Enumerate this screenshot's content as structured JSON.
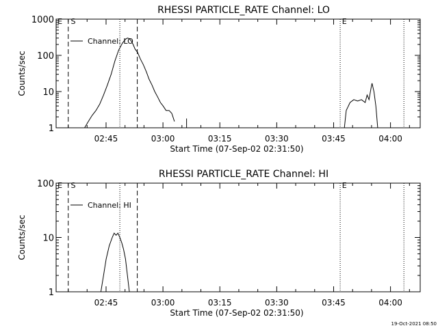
{
  "footer_timestamp": "19-Oct-2021 08:50",
  "chart_data": [
    {
      "type": "line",
      "title": "RHESSI PARTICLE_RATE Channel: LO",
      "xlabel": "Start Time (07-Sep-02 02:31:50)",
      "ylabel": "Counts/sec",
      "yscale": "log",
      "ylim": [
        1,
        1000
      ],
      "xlim_minutes": [
        0,
        96
      ],
      "xtick_labels": [
        "02:45",
        "03:00",
        "03:15",
        "03:30",
        "03:45",
        "04:00"
      ],
      "xtick_minutes": [
        13.17,
        28.17,
        43.17,
        58.17,
        73.17,
        88.17
      ],
      "ytick_labels": [
        "1",
        "10",
        "100",
        "1000"
      ],
      "ytick_values": [
        1,
        10,
        100,
        1000
      ],
      "legend": "Channel: LO",
      "series": [
        {
          "x": [
            7.5,
            8.5,
            9.5,
            10.5,
            11.5,
            12.5,
            13.5,
            14.5,
            15.5,
            16.5,
            17.5,
            18.3,
            18.8,
            19.3,
            19.8,
            20.3,
            20.8,
            21.5,
            22.2,
            23,
            23.8,
            24.5,
            25.3,
            26,
            26.8,
            27.5,
            28.2,
            29,
            29.8,
            30.5,
            31.2
          ],
          "y": [
            1,
            1.5,
            2.2,
            3,
            4.5,
            8,
            15,
            30,
            70,
            140,
            220,
            280,
            300,
            290,
            250,
            200,
            150,
            120,
            80,
            55,
            35,
            22,
            15,
            10,
            7,
            5,
            4,
            3,
            3,
            2.5,
            1.5
          ]
        },
        {
          "x": [
            76,
            76.5,
            77.5,
            78.5,
            79.5,
            80.5,
            81.5,
            82,
            82.5,
            83,
            83.3,
            83.8,
            84.3,
            84.8
          ],
          "y": [
            1,
            3,
            5,
            6,
            5.5,
            6,
            5,
            8,
            6,
            12,
            17,
            10,
            4,
            1
          ]
        },
        {
          "x": [
            34.4
          ],
          "y": [
            1.8
          ]
        }
      ],
      "dashed_markers_minutes": [
        3.2,
        21.4
      ],
      "dotted_markers_minutes": [
        16.8,
        74.9,
        91.7
      ],
      "annotations": [
        {
          "text": "E",
          "x": 0.2
        },
        {
          "text": "S",
          "x": 3.7
        },
        {
          "text": "E",
          "x": 75.2
        }
      ]
    },
    {
      "type": "line",
      "title": "RHESSI PARTICLE_RATE Channel: HI",
      "xlabel": "Start Time (07-Sep-02 02:31:50)",
      "ylabel": "Counts/sec",
      "yscale": "log",
      "ylim": [
        1,
        100
      ],
      "xlim_minutes": [
        0,
        96
      ],
      "xtick_labels": [
        "02:45",
        "03:00",
        "03:15",
        "03:30",
        "03:45",
        "04:00"
      ],
      "xtick_minutes": [
        13.17,
        28.17,
        43.17,
        58.17,
        73.17,
        88.17
      ],
      "ytick_labels": [
        "1",
        "10",
        "100"
      ],
      "ytick_values": [
        1,
        10,
        100
      ],
      "legend": "Channel: HI",
      "series": [
        {
          "x": [
            11.8,
            12.5,
            13.2,
            14,
            14.8,
            15.3,
            15.8,
            16.3,
            16.8,
            17.3,
            17.8,
            18.3,
            18.8,
            19.3
          ],
          "y": [
            1,
            2,
            4,
            7,
            10,
            12,
            11,
            12,
            10,
            8,
            6,
            4,
            2,
            1
          ]
        }
      ],
      "dashed_markers_minutes": [
        3.2,
        21.4
      ],
      "dotted_markers_minutes": [
        16.8,
        74.9,
        91.7
      ],
      "annotations": [
        {
          "text": "E",
          "x": 0.2
        },
        {
          "text": "S",
          "x": 3.7
        },
        {
          "text": "E",
          "x": 75.2
        }
      ]
    }
  ]
}
